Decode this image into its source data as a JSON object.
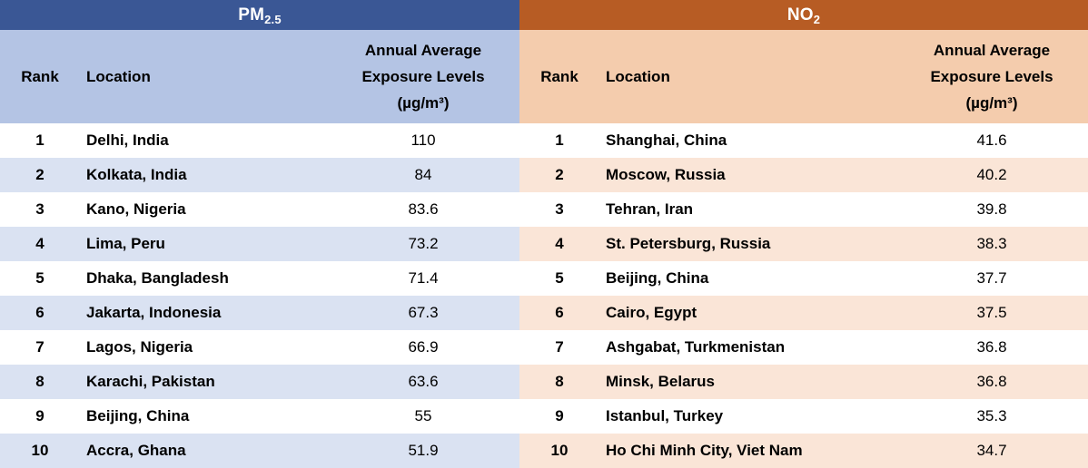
{
  "tables": [
    {
      "id": "pm25",
      "title": {
        "main": "PM",
        "subscript": "2.5"
      },
      "columns": {
        "rank": "Rank",
        "location": "Location",
        "value_lines": [
          "Annual Average",
          "Exposure Levels",
          "(µg/m³)"
        ]
      },
      "colors": {
        "header_bg": "#3A5795",
        "header_text": "#FFFFFF",
        "subheader_bg": "#B4C4E4",
        "band_bg": "#DAE2F2",
        "row_bg": "#FFFFFF",
        "text": "#000000"
      },
      "rows": [
        {
          "rank": "1",
          "location": "Delhi, India",
          "value": "110"
        },
        {
          "rank": "2",
          "location": "Kolkata, India",
          "value": "84"
        },
        {
          "rank": "3",
          "location": "Kano, Nigeria",
          "value": "83.6"
        },
        {
          "rank": "4",
          "location": "Lima, Peru",
          "value": "73.2"
        },
        {
          "rank": "5",
          "location": "Dhaka, Bangladesh",
          "value": "71.4"
        },
        {
          "rank": "6",
          "location": "Jakarta, Indonesia",
          "value": "67.3"
        },
        {
          "rank": "7",
          "location": "Lagos, Nigeria",
          "value": "66.9"
        },
        {
          "rank": "8",
          "location": "Karachi, Pakistan",
          "value": "63.6"
        },
        {
          "rank": "9",
          "location": "Beijing, China",
          "value": "55"
        },
        {
          "rank": "10",
          "location": "Accra, Ghana",
          "value": "51.9"
        }
      ]
    },
    {
      "id": "no2",
      "title": {
        "main": "NO",
        "subscript": "2"
      },
      "columns": {
        "rank": "Rank",
        "location": "Location",
        "value_lines": [
          "Annual Average",
          "Exposure Levels",
          "(µg/m³)"
        ]
      },
      "colors": {
        "header_bg": "#B75C24",
        "header_text": "#FFFFFF",
        "subheader_bg": "#F4CCAD",
        "band_bg": "#FAE5D7",
        "row_bg": "#FFFFFF",
        "text": "#000000"
      },
      "rows": [
        {
          "rank": "1",
          "location": "Shanghai, China",
          "value": "41.6"
        },
        {
          "rank": "2",
          "location": "Moscow, Russia",
          "value": "40.2"
        },
        {
          "rank": "3",
          "location": "Tehran, Iran",
          "value": "39.8"
        },
        {
          "rank": "4",
          "location": "St. Petersburg, Russia",
          "value": "38.3"
        },
        {
          "rank": "5",
          "location": "Beijing, China",
          "value": "37.7"
        },
        {
          "rank": "6",
          "location": "Cairo, Egypt",
          "value": "37.5"
        },
        {
          "rank": "7",
          "location": "Ashgabat, Turkmenistan",
          "value": "36.8"
        },
        {
          "rank": "8",
          "location": "Minsk, Belarus",
          "value": "36.8"
        },
        {
          "rank": "9",
          "location": "Istanbul, Turkey",
          "value": "35.3"
        },
        {
          "rank": "10",
          "location": "Ho Chi Minh City, Viet Nam",
          "value": "34.7"
        }
      ]
    }
  ],
  "chart_data": [
    {
      "type": "table",
      "title": "PM2.5",
      "columns": [
        "Rank",
        "Location",
        "Annual Average Exposure Levels (µg/m³)"
      ],
      "rows": [
        [
          1,
          "Delhi, India",
          110
        ],
        [
          2,
          "Kolkata, India",
          84
        ],
        [
          3,
          "Kano, Nigeria",
          83.6
        ],
        [
          4,
          "Lima, Peru",
          73.2
        ],
        [
          5,
          "Dhaka, Bangladesh",
          71.4
        ],
        [
          6,
          "Jakarta, Indonesia",
          67.3
        ],
        [
          7,
          "Lagos, Nigeria",
          66.9
        ],
        [
          8,
          "Karachi, Pakistan",
          63.6
        ],
        [
          9,
          "Beijing, China",
          55
        ],
        [
          10,
          "Accra, Ghana",
          51.9
        ]
      ]
    },
    {
      "type": "table",
      "title": "NO2",
      "columns": [
        "Rank",
        "Location",
        "Annual Average Exposure Levels (µg/m³)"
      ],
      "rows": [
        [
          1,
          "Shanghai, China",
          41.6
        ],
        [
          2,
          "Moscow, Russia",
          40.2
        ],
        [
          3,
          "Tehran, Iran",
          39.8
        ],
        [
          4,
          "St. Petersburg, Russia",
          38.3
        ],
        [
          5,
          "Beijing, China",
          37.7
        ],
        [
          6,
          "Cairo, Egypt",
          37.5
        ],
        [
          7,
          "Ashgabat, Turkmenistan",
          36.8
        ],
        [
          8,
          "Minsk, Belarus",
          36.8
        ],
        [
          9,
          "Istanbul, Turkey",
          35.3
        ],
        [
          10,
          "Ho Chi Minh City, Viet Nam",
          34.7
        ]
      ]
    }
  ]
}
